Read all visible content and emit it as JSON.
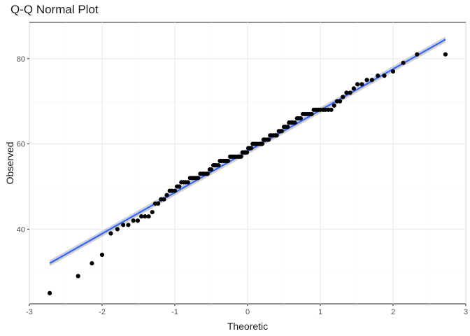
{
  "chart_data": {
    "type": "scatter",
    "title": "Q-Q Normal Plot",
    "xlabel": "Theoretic",
    "ylabel": "Observed",
    "xlim": [
      -3,
      3
    ],
    "ylim": [
      22.5,
      88.5
    ],
    "x_ticks": [
      -3,
      -2,
      -1,
      0,
      1,
      2,
      3
    ],
    "y_ticks": [
      40,
      60,
      80
    ],
    "grid": true,
    "colors": {
      "points": "#000000",
      "line": "#3366ff",
      "band": "#999999",
      "grid_major": "#ebebeb",
      "grid_minor": "#f5f5f5",
      "border": "#333333"
    },
    "reference_line": {
      "x": [
        -2.72,
        2.72
      ],
      "y": [
        32.0,
        84.5
      ]
    },
    "points": {
      "x": [
        -2.72,
        -2.33,
        -2.14,
        -2.0,
        -1.88,
        -1.79,
        -1.71,
        -1.64,
        -1.57,
        -1.51,
        -1.46,
        -1.41,
        -1.36,
        -1.31,
        -1.27,
        -1.23,
        -1.19,
        -1.15,
        -1.11,
        -1.07,
        -1.04,
        -1.0,
        -0.97,
        -0.94,
        -0.91,
        -0.88,
        -0.85,
        -0.82,
        -0.79,
        -0.76,
        -0.73,
        -0.7,
        -0.68,
        -0.65,
        -0.62,
        -0.6,
        -0.57,
        -0.55,
        -0.52,
        -0.5,
        -0.47,
        -0.45,
        -0.43,
        -0.4,
        -0.38,
        -0.36,
        -0.33,
        -0.31,
        -0.29,
        -0.27,
        -0.24,
        -0.22,
        -0.2,
        -0.18,
        -0.16,
        -0.13,
        -0.11,
        -0.09,
        -0.07,
        -0.05,
        -0.03,
        -0.01,
        0.01,
        0.03,
        0.05,
        0.07,
        0.09,
        0.11,
        0.13,
        0.16,
        0.18,
        0.2,
        0.22,
        0.24,
        0.27,
        0.29,
        0.31,
        0.33,
        0.36,
        0.38,
        0.4,
        0.43,
        0.45,
        0.47,
        0.5,
        0.52,
        0.55,
        0.57,
        0.6,
        0.62,
        0.65,
        0.68,
        0.7,
        0.73,
        0.76,
        0.79,
        0.82,
        0.85,
        0.88,
        0.91,
        0.94,
        0.97,
        1.0,
        1.04,
        1.07,
        1.11,
        1.15,
        1.19,
        1.23,
        1.27,
        1.31,
        1.36,
        1.41,
        1.46,
        1.51,
        1.57,
        1.64,
        1.71,
        1.79,
        1.88,
        2.0,
        2.14,
        2.33,
        2.72
      ],
      "y": [
        25,
        29,
        32,
        34,
        39,
        40,
        41,
        41,
        42,
        42,
        43,
        43,
        43,
        44,
        46,
        46,
        47,
        47,
        48,
        49,
        49,
        49,
        50,
        50,
        51,
        51,
        51,
        51,
        52,
        52,
        52,
        52,
        52,
        53,
        53,
        53,
        53,
        53,
        54,
        54,
        55,
        55,
        55,
        55,
        56,
        56,
        56,
        56,
        56,
        56,
        57,
        57,
        57,
        57,
        57,
        57,
        57,
        57,
        58,
        58,
        58,
        58,
        59,
        59,
        59,
        60,
        60,
        60,
        60,
        60,
        60,
        60,
        61,
        61,
        61,
        61,
        62,
        62,
        62,
        62,
        62,
        63,
        63,
        63,
        64,
        64,
        64,
        65,
        65,
        65,
        65,
        66,
        66,
        66,
        67,
        67,
        67,
        67,
        67,
        68,
        68,
        68,
        68,
        68,
        68,
        68,
        68,
        69,
        70,
        70,
        71,
        72,
        72,
        73,
        74,
        74,
        75,
        75,
        76,
        76,
        77,
        79,
        81,
        81
      ]
    }
  }
}
